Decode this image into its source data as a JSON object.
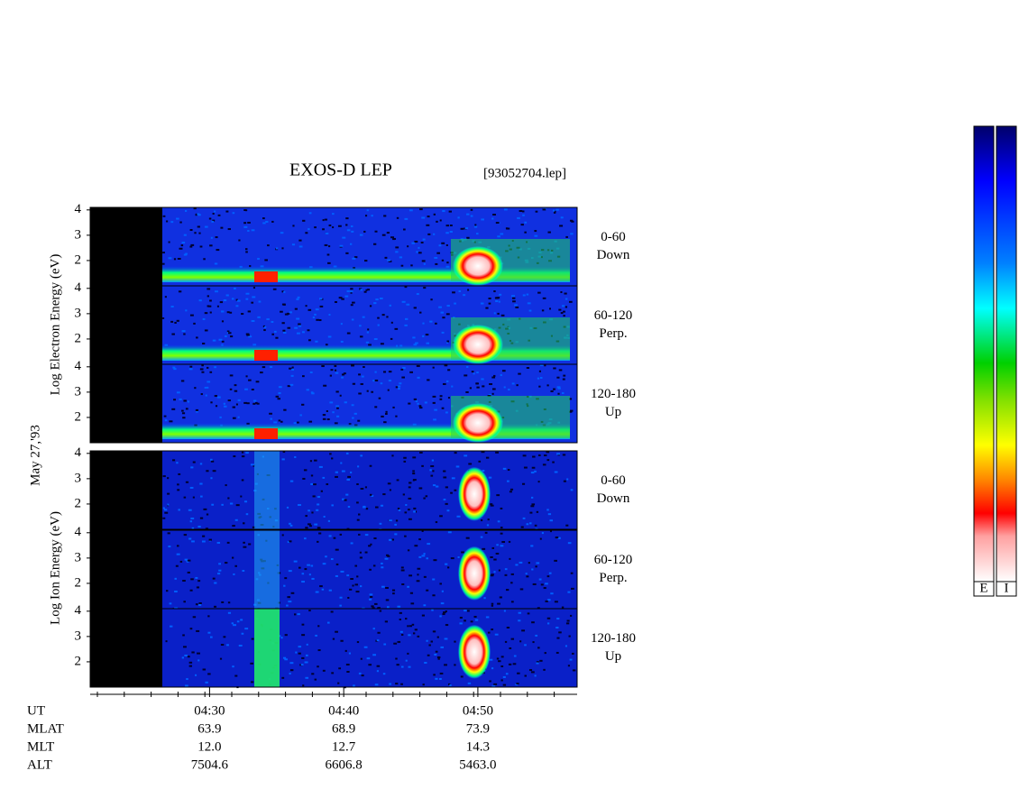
{
  "chart_data": {
    "type": "spectrogram",
    "title": "EXOS-D LEP",
    "file_label": "[93052704.lep]",
    "date_label": "May 27,'93",
    "xlim": [
      261.1,
      297.4
    ],
    "xticks": [
      {
        "value": 270,
        "label": "04:30"
      },
      {
        "value": 280,
        "label": "04:40"
      },
      {
        "value": 290,
        "label": "04:50"
      }
    ],
    "ylim": [
      1,
      4.1
    ],
    "yticks": [
      2,
      3,
      4
    ],
    "groups": [
      {
        "ylabel": "Log  Electron  Energy (eV)",
        "panels": [
          {
            "angle": "0-60",
            "direction": "Down"
          },
          {
            "angle": "60-120",
            "direction": "Perp."
          },
          {
            "angle": "120-180",
            "direction": "Up"
          }
        ]
      },
      {
        "ylabel": "Log  Ion  Energy (eV)",
        "panels": [
          {
            "angle": "0-60",
            "direction": "Down"
          },
          {
            "angle": "60-120",
            "direction": "Perp."
          },
          {
            "angle": "120-180",
            "direction": "Up"
          }
        ]
      }
    ],
    "x_axis_label": "UT",
    "ephemeris": [
      {
        "name": "MLAT",
        "values": [
          "63.9",
          "68.9",
          "73.9"
        ]
      },
      {
        "name": "MLT",
        "values": [
          "12.0",
          "12.7",
          "14.3"
        ]
      },
      {
        "name": "ALT",
        "values": [
          "7504.6",
          "6606.8",
          "5463.0"
        ]
      }
    ],
    "colorbar_labels": [
      "E",
      "I"
    ]
  }
}
